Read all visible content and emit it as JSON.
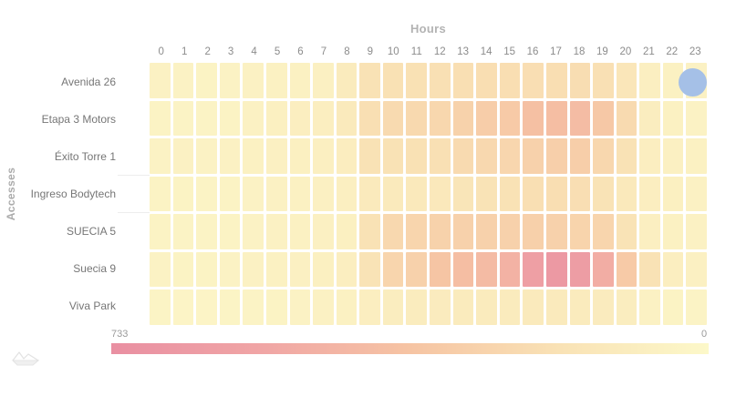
{
  "title": "Hours",
  "y_axis_title": "Accesses",
  "legend": {
    "max_label": "733",
    "min_label": "0"
  },
  "colors": {
    "scale_high": "#e98fa2",
    "scale_mid": "#f6c4a3",
    "scale_low": "#fcf8c9",
    "circle_button": "#a5c0e7",
    "axis_text": "#8c8c8c",
    "title_text": "#b3b3b3"
  },
  "chart_data": {
    "type": "heatmap",
    "title": "Hours",
    "xlabel": "Hours",
    "ylabel": "Accesses",
    "columns": [
      "0",
      "1",
      "2",
      "3",
      "4",
      "5",
      "6",
      "7",
      "8",
      "9",
      "10",
      "11",
      "12",
      "13",
      "14",
      "15",
      "16",
      "17",
      "18",
      "19",
      "20",
      "21",
      "22",
      "23"
    ],
    "rows": [
      "Avenida 26",
      "Etapa 3 Motors",
      "Éxito Torre 1",
      "Ingreso Bodytech",
      "SUECIA 5",
      "Suecia 9",
      "Viva Park"
    ],
    "series": [
      {
        "name": "Avenida 26",
        "values": [
          55,
          50,
          45,
          50,
          55,
          60,
          60,
          65,
          110,
          185,
          190,
          190,
          195,
          200,
          210,
          210,
          205,
          210,
          215,
          195,
          150,
          75,
          60,
          55
        ]
      },
      {
        "name": "Etapa 3 Motors",
        "values": [
          45,
          40,
          40,
          45,
          55,
          70,
          80,
          85,
          120,
          200,
          230,
          240,
          250,
          280,
          310,
          330,
          390,
          400,
          415,
          340,
          230,
          95,
          60,
          50
        ]
      },
      {
        "name": "Éxito Torre 1",
        "values": [
          50,
          55,
          50,
          55,
          60,
          65,
          70,
          75,
          90,
          180,
          185,
          190,
          195,
          230,
          245,
          255,
          285,
          300,
          305,
          250,
          185,
          80,
          65,
          60
        ]
      },
      {
        "name": "Ingreso Bodytech",
        "values": [
          45,
          45,
          40,
          45,
          50,
          55,
          60,
          65,
          75,
          115,
          120,
          125,
          130,
          160,
          175,
          185,
          200,
          210,
          205,
          175,
          125,
          80,
          70,
          55
        ]
      },
      {
        "name": "SUECIA 5",
        "values": [
          45,
          40,
          40,
          45,
          50,
          55,
          60,
          65,
          70,
          185,
          245,
          260,
          280,
          290,
          285,
          285,
          295,
          285,
          270,
          260,
          175,
          75,
          60,
          55
        ]
      },
      {
        "name": "Suecia 9",
        "values": [
          50,
          45,
          45,
          50,
          55,
          60,
          65,
          70,
          80,
          175,
          260,
          285,
          360,
          400,
          420,
          470,
          600,
          650,
          620,
          500,
          330,
          185,
          80,
          65
        ]
      },
      {
        "name": "Viva Park",
        "values": [
          35,
          30,
          30,
          35,
          40,
          45,
          50,
          55,
          60,
          85,
          95,
          100,
          105,
          110,
          110,
          110,
          115,
          115,
          110,
          105,
          95,
          55,
          45,
          40
        ]
      }
    ],
    "scale": {
      "min": 0,
      "max": 733
    },
    "colormap": [
      "#fcf8c9",
      "#f9e2b5",
      "#f6c4a3",
      "#f0a5a5",
      "#e98fa2"
    ],
    "legend_position": "bottom",
    "grid": false
  }
}
